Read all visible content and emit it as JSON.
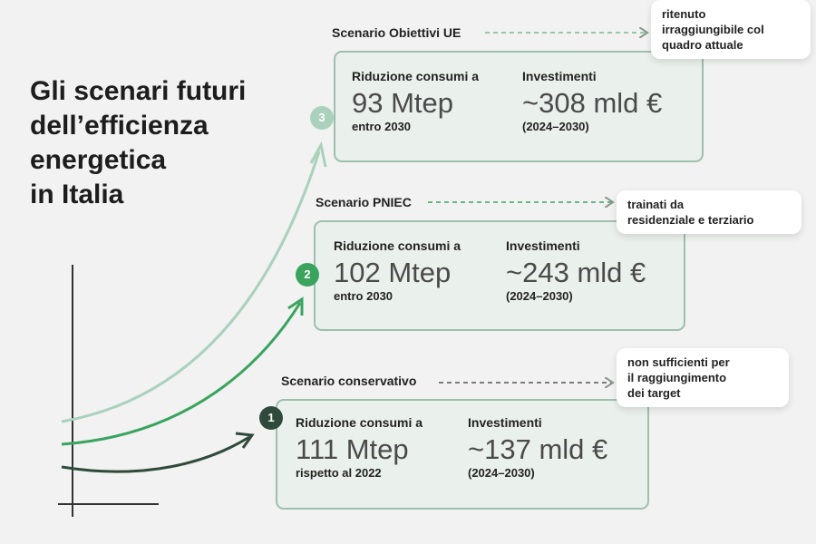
{
  "title": {
    "lines": [
      "Gli scenari futuri",
      "dell’efficienza",
      "energetica",
      "in Italia"
    ]
  },
  "colors": {
    "ue": "#a9d1bc",
    "pniec": "#3aa35e",
    "conservativo": "#2f4a3a",
    "card_border": "#9fbfae"
  },
  "scenarios": [
    {
      "number": "3",
      "name": "Scenario Obiettivi UE",
      "reduction_label": "Riduzione consumi a",
      "reduction_value": "93 Mtep",
      "reduction_note": "entro 2030",
      "investment_label": "Investimenti",
      "investment_value": "~308 mld €",
      "investment_period": "(2024–2030)",
      "note_lines": [
        "ritenuto",
        "irraggiungibile col",
        "quadro attuale"
      ]
    },
    {
      "number": "2",
      "name": "Scenario PNIEC",
      "reduction_label": "Riduzione consumi a",
      "reduction_value": "102 Mtep",
      "reduction_note": "entro 2030",
      "investment_label": "Investimenti",
      "investment_value": "~243 mld €",
      "investment_period": "(2024–2030)",
      "note_lines": [
        "trainati da",
        "residenziale e terziario"
      ]
    },
    {
      "number": "1",
      "name": "Scenario conservativo",
      "reduction_label": "Riduzione consumi a",
      "reduction_value": "111 Mtep",
      "reduction_note": "rispetto al 2022",
      "investment_label": "Investimenti",
      "investment_value": "~137 mld €",
      "investment_period": "(2024–2030)",
      "note_lines": [
        "non sufficienti per",
        "il raggiungimento",
        "dei target"
      ]
    }
  ]
}
